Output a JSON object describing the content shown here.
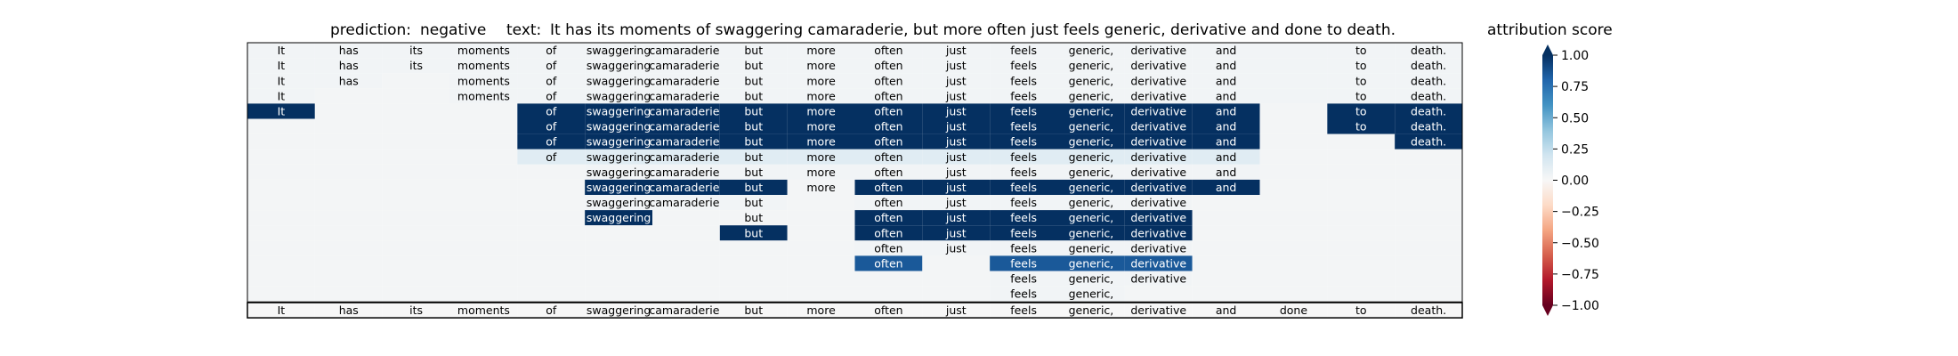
{
  "header": {
    "prediction_label": "prediction:",
    "prediction_value": "negative",
    "text_label": "text:",
    "text_value": "It has its moments of swaggering camaraderie, but more often just feels generic, derivative and done to death."
  },
  "colorbar": {
    "title": "attribution score",
    "ticks": [
      "1.00",
      "0.75",
      "0.50",
      "0.25",
      "0.00",
      "−0.25",
      "−0.50",
      "−0.75",
      "−1.00"
    ],
    "range": [
      -1.0,
      1.0
    ],
    "colormap": "RdBu"
  },
  "chart_data": {
    "type": "heatmap",
    "title": "prediction:  negative     text:  It has its moments of swaggering camaraderie, but more often just feels generic, derivative and done to death.",
    "colorbar_label": "attribution score",
    "value_range": [
      -1.0,
      1.0
    ],
    "tokens": [
      "It",
      "has",
      "its",
      "moments",
      "of",
      "swaggering",
      "camaraderie,",
      "but",
      "more",
      "often",
      "just",
      "feels",
      "generic,",
      "derivative",
      "and",
      "done",
      "to",
      "death."
    ],
    "rows": [
      {
        "present": [
          1,
          1,
          1,
          1,
          1,
          1,
          1,
          1,
          1,
          1,
          1,
          1,
          1,
          1,
          1,
          0,
          1,
          1
        ],
        "values": [
          0.03,
          0.03,
          0.03,
          0.03,
          0.03,
          0.03,
          0.03,
          0.03,
          0.03,
          0.03,
          0.03,
          0.03,
          0.03,
          0.03,
          0.03,
          0.03,
          0.03,
          0.03
        ]
      },
      {
        "present": [
          1,
          1,
          1,
          1,
          1,
          1,
          1,
          1,
          1,
          1,
          1,
          1,
          1,
          1,
          1,
          0,
          1,
          1
        ],
        "values": [
          0.03,
          0.03,
          0.03,
          0.03,
          0.03,
          0.03,
          0.03,
          0.03,
          0.03,
          0.03,
          0.03,
          0.03,
          0.03,
          0.03,
          0.03,
          0.03,
          0.03,
          0.03
        ]
      },
      {
        "present": [
          1,
          1,
          0,
          1,
          1,
          1,
          1,
          1,
          1,
          1,
          1,
          1,
          1,
          1,
          1,
          0,
          1,
          1
        ],
        "values": [
          0.03,
          0.03,
          0.02,
          0.03,
          0.03,
          0.03,
          0.03,
          0.03,
          0.03,
          0.03,
          0.03,
          0.03,
          0.03,
          0.03,
          0.03,
          0.03,
          0.03,
          0.03
        ]
      },
      {
        "present": [
          1,
          0,
          0,
          1,
          1,
          1,
          1,
          1,
          1,
          1,
          1,
          1,
          1,
          1,
          1,
          0,
          1,
          1
        ],
        "values": [
          0.03,
          0.02,
          0.02,
          0.03,
          0.03,
          0.03,
          0.03,
          0.03,
          0.03,
          0.03,
          0.03,
          0.03,
          0.03,
          0.03,
          0.03,
          0.03,
          0.03,
          0.03
        ]
      },
      {
        "present": [
          1,
          0,
          0,
          0,
          1,
          1,
          1,
          1,
          1,
          1,
          1,
          1,
          1,
          1,
          1,
          0,
          1,
          1
        ],
        "values": [
          1.0,
          0.02,
          0.02,
          0.02,
          1.0,
          1.0,
          1.0,
          1.0,
          1.0,
          1.0,
          1.0,
          1.0,
          1.0,
          1.0,
          1.0,
          0.02,
          1.0,
          1.0
        ]
      },
      {
        "present": [
          0,
          0,
          0,
          0,
          1,
          1,
          1,
          1,
          1,
          1,
          1,
          1,
          1,
          1,
          1,
          0,
          1,
          1
        ],
        "values": [
          0.02,
          0.02,
          0.02,
          0.02,
          1.0,
          1.0,
          1.0,
          1.0,
          1.0,
          1.0,
          1.0,
          1.0,
          1.0,
          1.0,
          1.0,
          0.02,
          1.0,
          1.0
        ]
      },
      {
        "present": [
          0,
          0,
          0,
          0,
          1,
          1,
          1,
          1,
          1,
          1,
          1,
          1,
          1,
          1,
          1,
          0,
          0,
          1
        ],
        "values": [
          0.02,
          0.02,
          0.02,
          0.02,
          1.0,
          1.0,
          1.0,
          1.0,
          1.0,
          1.0,
          1.0,
          1.0,
          1.0,
          1.0,
          1.0,
          0.02,
          0.02,
          1.0
        ]
      },
      {
        "present": [
          0,
          0,
          0,
          0,
          1,
          1,
          1,
          1,
          1,
          1,
          1,
          1,
          1,
          1,
          1,
          0,
          0,
          0
        ],
        "values": [
          0.02,
          0.02,
          0.02,
          0.02,
          0.12,
          0.12,
          0.12,
          0.12,
          0.12,
          0.12,
          0.12,
          0.12,
          0.12,
          0.12,
          0.12,
          0.02,
          0.02,
          0.02
        ]
      },
      {
        "present": [
          0,
          0,
          0,
          0,
          0,
          1,
          1,
          1,
          1,
          1,
          1,
          1,
          1,
          1,
          1,
          0,
          0,
          0
        ],
        "values": [
          0.02,
          0.02,
          0.02,
          0.02,
          0.02,
          0.03,
          0.03,
          0.03,
          0.03,
          0.03,
          0.03,
          0.03,
          0.03,
          0.03,
          0.03,
          0.02,
          0.02,
          0.02
        ]
      },
      {
        "present": [
          0,
          0,
          0,
          0,
          0,
          1,
          1,
          1,
          1,
          1,
          1,
          1,
          1,
          1,
          1,
          0,
          0,
          0
        ],
        "values": [
          0.02,
          0.02,
          0.02,
          0.02,
          0.02,
          1.0,
          1.0,
          1.0,
          0.02,
          1.0,
          1.0,
          1.0,
          1.0,
          1.0,
          1.0,
          0.02,
          0.02,
          0.02
        ]
      },
      {
        "present": [
          0,
          0,
          0,
          0,
          0,
          1,
          1,
          1,
          0,
          1,
          1,
          1,
          1,
          1,
          0,
          0,
          0,
          0
        ],
        "values": [
          0.02,
          0.02,
          0.02,
          0.02,
          0.02,
          0.03,
          0.03,
          0.03,
          0.02,
          0.03,
          0.03,
          0.03,
          0.03,
          0.03,
          0.02,
          0.02,
          0.02,
          0.02
        ]
      },
      {
        "present": [
          0,
          0,
          0,
          0,
          0,
          1,
          0,
          1,
          0,
          1,
          1,
          1,
          1,
          1,
          0,
          0,
          0,
          0
        ],
        "values": [
          0.02,
          0.02,
          0.02,
          0.02,
          0.02,
          1.0,
          0.02,
          0.02,
          0.02,
          1.0,
          1.0,
          1.0,
          1.0,
          1.0,
          0.02,
          0.02,
          0.02,
          0.02
        ]
      },
      {
        "present": [
          0,
          0,
          0,
          0,
          0,
          0,
          0,
          1,
          0,
          1,
          1,
          1,
          1,
          1,
          0,
          0,
          0,
          0
        ],
        "values": [
          0.02,
          0.02,
          0.02,
          0.02,
          0.02,
          0.02,
          0.02,
          1.0,
          0.02,
          1.0,
          1.0,
          1.0,
          1.0,
          1.0,
          0.02,
          0.02,
          0.02,
          0.02
        ]
      },
      {
        "present": [
          0,
          0,
          0,
          0,
          0,
          0,
          0,
          0,
          0,
          1,
          1,
          1,
          1,
          1,
          0,
          0,
          0,
          0
        ],
        "values": [
          0.02,
          0.02,
          0.02,
          0.02,
          0.02,
          0.02,
          0.02,
          0.02,
          0.02,
          0.03,
          0.03,
          0.03,
          0.03,
          0.03,
          0.02,
          0.02,
          0.02,
          0.02
        ]
      },
      {
        "present": [
          0,
          0,
          0,
          0,
          0,
          0,
          0,
          0,
          0,
          1,
          0,
          1,
          1,
          1,
          0,
          0,
          0,
          0
        ],
        "values": [
          0.02,
          0.02,
          0.02,
          0.02,
          0.02,
          0.02,
          0.02,
          0.02,
          0.02,
          0.85,
          0.02,
          0.85,
          0.85,
          0.85,
          0.02,
          0.02,
          0.02,
          0.02
        ]
      },
      {
        "present": [
          0,
          0,
          0,
          0,
          0,
          0,
          0,
          0,
          0,
          0,
          0,
          1,
          1,
          1,
          0,
          0,
          0,
          0
        ],
        "values": [
          0.02,
          0.02,
          0.02,
          0.02,
          0.02,
          0.02,
          0.02,
          0.02,
          0.02,
          0.02,
          0.02,
          0.03,
          0.03,
          0.03,
          0.02,
          0.02,
          0.02,
          0.02
        ]
      },
      {
        "present": [
          0,
          0,
          0,
          0,
          0,
          0,
          0,
          0,
          0,
          0,
          0,
          1,
          1,
          0,
          0,
          0,
          0,
          0
        ],
        "values": [
          0.02,
          0.02,
          0.02,
          0.02,
          0.02,
          0.02,
          0.02,
          0.02,
          0.02,
          0.02,
          0.02,
          0.03,
          0.03,
          0.02,
          0.02,
          0.02,
          0.02,
          0.02
        ]
      }
    ],
    "bottom_row": {
      "present": [
        1,
        1,
        1,
        1,
        1,
        1,
        1,
        1,
        1,
        1,
        1,
        1,
        1,
        1,
        1,
        1,
        1,
        1
      ],
      "values": [
        0.0,
        0.0,
        0.0,
        0.0,
        0.0,
        0.0,
        0.0,
        0.0,
        0.0,
        0.0,
        0.0,
        0.0,
        0.0,
        0.0,
        0.0,
        0.0,
        0.0,
        0.0
      ]
    }
  }
}
